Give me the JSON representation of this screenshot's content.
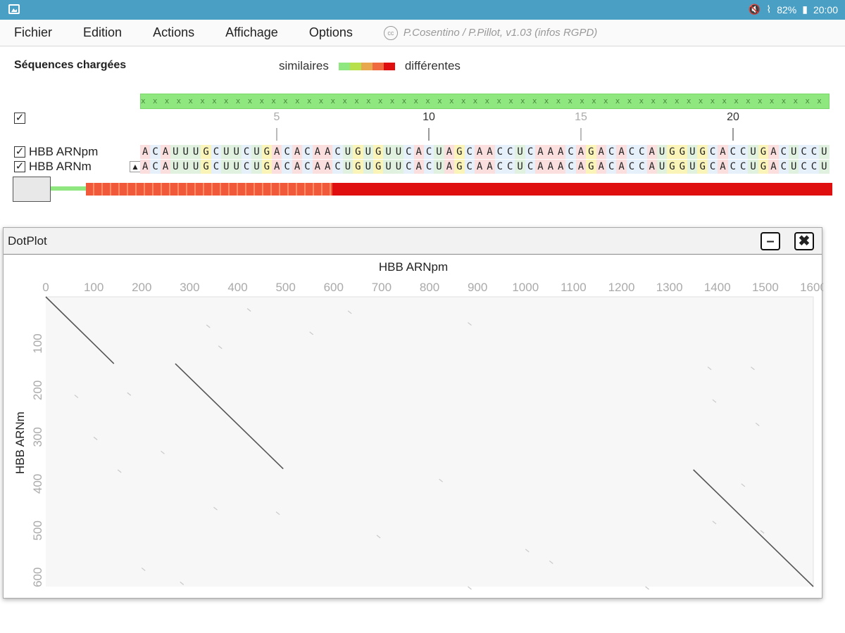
{
  "status": {
    "battery": "82%",
    "time": "20:00"
  },
  "menu": {
    "items": [
      "Fichier",
      "Edition",
      "Actions",
      "Affichage",
      "Options"
    ],
    "credits": "P.Cosentino / P.Pillot, v1.03 (infos RGPD)",
    "cc_text": "cc"
  },
  "header": {
    "title": "Séquences chargées",
    "legend_left": "similaires",
    "legend_right": "différentes",
    "legend_colors": [
      "#8fe87f",
      "#b8e04a",
      "#e8a84e",
      "#f06a40",
      "#e00f0f"
    ]
  },
  "consensus_text": "x x x x x x x x x x x x x x x x x x x x x x x x x x x x x x x x x x x x x x x x x x x x x x x x x x x x x x x x x x x x x x x x x x x x",
  "ruler": {
    "ticks": [
      {
        "label": "5",
        "faint": true
      },
      {
        "label": "10",
        "faint": false
      },
      {
        "label": "15",
        "faint": true
      },
      {
        "label": "20",
        "faint": false
      }
    ]
  },
  "sequences": [
    {
      "name": "HBB ARNpm",
      "checked": true,
      "residues": "ACAUUUGCUUCUGACACAACUGUGUUCACUAGCAACCUCAAACAGACACCAUGGUGCACCUGACUCCU"
    },
    {
      "name": "HBB ARNm",
      "checked": true,
      "residues": "ACAUUUGCUUCUGACACAACUGUGUUCACUAGCAACCUCAAACAGACACCAUGGUGCACCUGACUCCU"
    }
  ],
  "dotplot": {
    "window_title": "DotPlot",
    "minimize_label": "–",
    "close_label": "✖"
  },
  "chart_data": {
    "type": "scatter",
    "title": "",
    "xlabel": "HBB ARNpm",
    "ylabel": "HBB ARNm",
    "xlim": [
      0,
      1600
    ],
    "ylim": [
      0,
      620
    ],
    "xticks": [
      "0",
      "100",
      "200",
      "300",
      "400",
      "500",
      "600",
      "700",
      "800",
      "900",
      "1000",
      "1100",
      "1200",
      "1300",
      "1400",
      "1500",
      "1600"
    ],
    "yticks": [
      "100",
      "200",
      "300",
      "400",
      "500",
      "600"
    ],
    "diagonal_segments": [
      {
        "x": [
          0,
          142
        ],
        "y": [
          0,
          143
        ]
      },
      {
        "x": [
          270,
          495
        ],
        "y": [
          143,
          368
        ]
      },
      {
        "x": [
          1350,
          1600
        ],
        "y": [
          370,
          620
        ]
      }
    ],
    "grid": false
  }
}
